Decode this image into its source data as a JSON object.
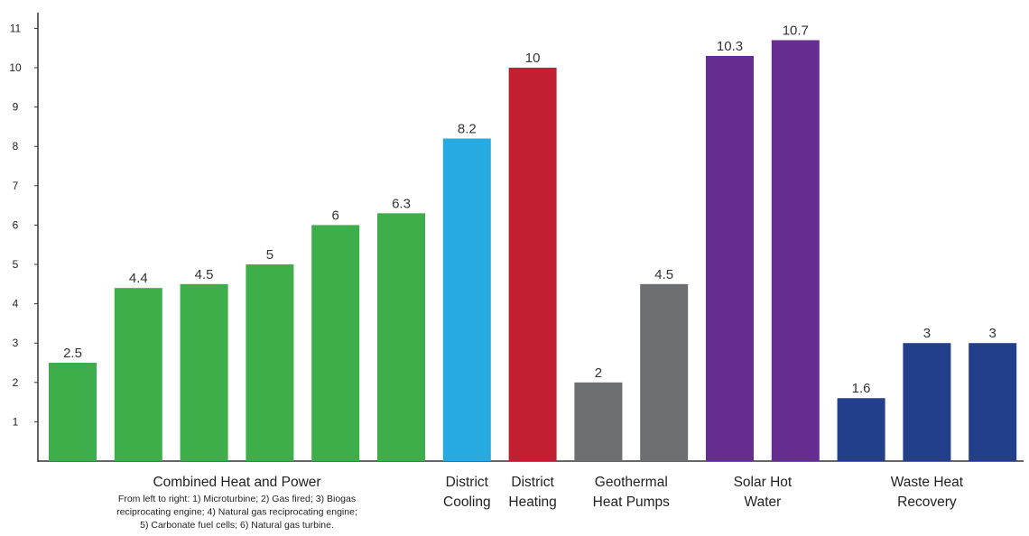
{
  "chart_data": {
    "type": "bar",
    "title": "",
    "xlabel": "",
    "ylabel": "",
    "ylim": [
      0,
      11.4
    ],
    "yticks": [
      1,
      2,
      3,
      4,
      5,
      6,
      7,
      8,
      9,
      10,
      11
    ],
    "grid": false,
    "groups": [
      {
        "label_lines": [
          "Combined Heat and Power"
        ],
        "note_lines": [
          "From left to right: 1) Microturbine; 2) Gas fired; 3) Biogas",
          "reciprocating engine; 4) Natural gas reciprocating engine;",
          "5) Carbonate fuel cells; 6) Natural gas turbine."
        ],
        "color": "#3DAE49",
        "values": [
          2.5,
          4.4,
          4.5,
          5,
          6,
          6.3
        ],
        "value_labels": [
          "2.5",
          "4.4",
          "4.5",
          "5",
          "6",
          "6.3"
        ]
      },
      {
        "label_lines": [
          "District",
          "Cooling"
        ],
        "color": "#27A9E1",
        "values": [
          8.2
        ],
        "value_labels": [
          "8.2"
        ]
      },
      {
        "label_lines": [
          "District",
          "Heating"
        ],
        "color": "#C21F32",
        "values": [
          10
        ],
        "value_labels": [
          "10"
        ]
      },
      {
        "label_lines": [
          "Geothermal",
          "Heat Pumps"
        ],
        "color": "#6D6E71",
        "values": [
          2,
          4.5
        ],
        "value_labels": [
          "2",
          "4.5"
        ]
      },
      {
        "label_lines": [
          "Solar Hot",
          "Water"
        ],
        "color": "#662D91",
        "values": [
          10.3,
          10.7
        ],
        "value_labels": [
          "10.3",
          "10.7"
        ]
      },
      {
        "label_lines": [
          "Waste Heat",
          "Recovery"
        ],
        "color": "#233E8B",
        "values": [
          1.6,
          3,
          3
        ],
        "value_labels": [
          "1.6",
          "3",
          "3"
        ]
      }
    ]
  }
}
